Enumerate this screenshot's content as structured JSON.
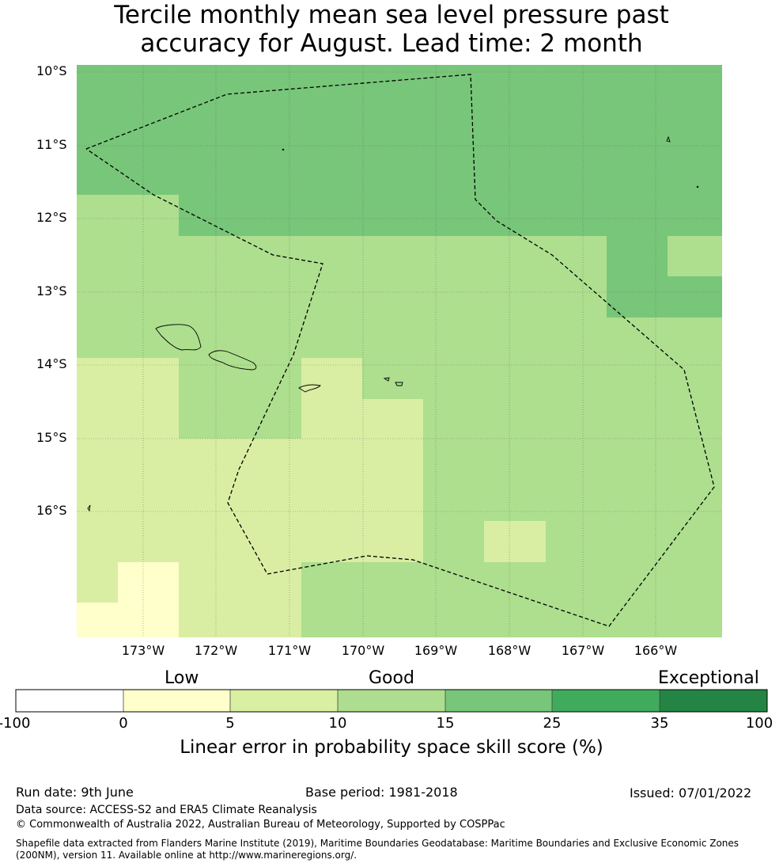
{
  "title": {
    "line1": "Tercile monthly mean sea level pressure past",
    "line2": "accuracy for August. Lead time: 2 month"
  },
  "map": {
    "lat_labels": [
      "10°S",
      "11°S",
      "12°S",
      "13°S",
      "14°S",
      "15°S",
      "16°S"
    ],
    "lon_labels": [
      "173°W",
      "172°W",
      "171°W",
      "170°W",
      "169°W",
      "168°W",
      "167°W",
      "166°W"
    ],
    "extent": {
      "lon_min": -173.9,
      "lon_max": -165.1,
      "lat_min": -17.8,
      "lat_max": -9.9
    },
    "grid_lines": true,
    "colors": {
      "skill_5_10": "#d9eea3",
      "skill_10_15": "#addf8e",
      "skill_15_25": "#78c679",
      "skill_0_5": "#ffffcc",
      "coastline": "#000000",
      "eez_boundary": "#000000"
    }
  },
  "colorbar": {
    "categories": {
      "low": "Low",
      "good": "Good",
      "exceptional": "Exceptional"
    },
    "ticks": [
      "-100",
      "0",
      "5",
      "10",
      "15",
      "25",
      "35",
      "100"
    ],
    "colors": [
      "#ffffff",
      "#ffffcc",
      "#d9f0a3",
      "#addd8e",
      "#78c679",
      "#41ab5d",
      "#238443"
    ],
    "axis_label": "Linear error in probability space skill score (%)"
  },
  "footer": {
    "run_date": "Run date: 9th June",
    "base_period": "Base period: 1981-2018",
    "issued": "Issued: 07/01/2022",
    "data_source": "Data source: ACCESS-S2 and ERA5 Climate Reanalysis",
    "copyright": "© Commonwealth of Australia 2022, Australian Bureau of Meteorology, Supported by COSPPac",
    "shapefile": "Shapefile data extracted from Flanders Marine Institute (2019), Maritime Boundaries Geodatabase: Maritime Boundaries and Exclusive Economic Zones (200NM), version 11. Available online at http://www.marineregions.org/."
  }
}
